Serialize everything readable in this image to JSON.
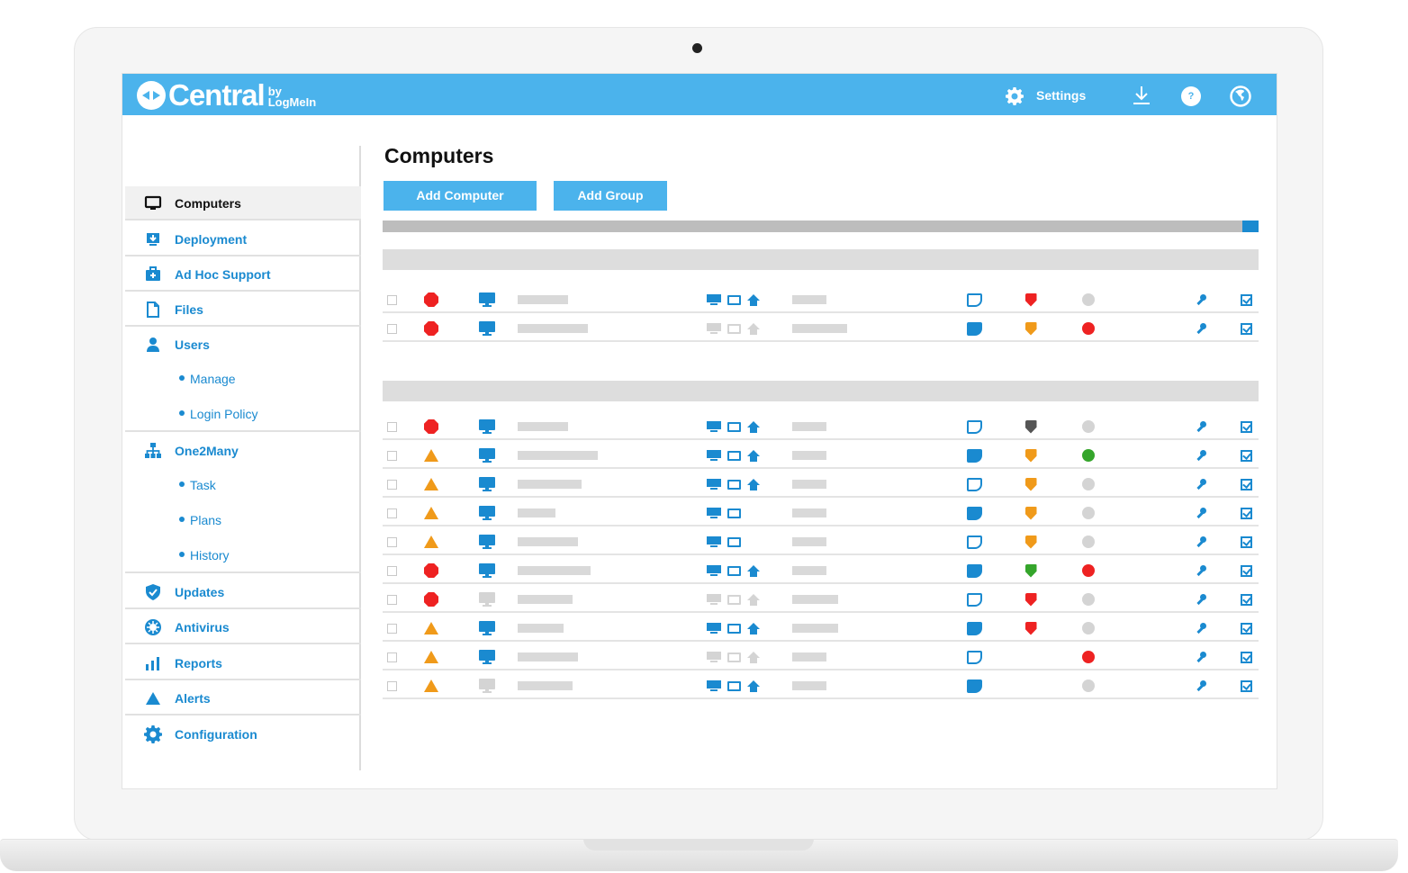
{
  "header": {
    "logo_text": "Central",
    "logo_by": "by",
    "logo_brand": "LogMeIn",
    "settings_label": "Settings",
    "help_glyph": "?",
    "icons": [
      "gear-icon",
      "download-icon",
      "help-icon",
      "globe-icon"
    ],
    "background_color": "#4bb3ec"
  },
  "sidebar": {
    "items": [
      {
        "label": "Computers",
        "icon": "monitor-icon",
        "active": true
      },
      {
        "label": "Deployment",
        "icon": "deploy-icon"
      },
      {
        "label": "Ad Hoc Support",
        "icon": "medkit-icon"
      },
      {
        "label": "Files",
        "icon": "file-icon"
      },
      {
        "label": "Users",
        "icon": "user-icon",
        "children": [
          "Manage",
          "Login Policy"
        ]
      },
      {
        "label": "One2Many",
        "icon": "hierarchy-icon",
        "children": [
          "Task",
          "Plans",
          "History"
        ]
      },
      {
        "label": "Updates",
        "icon": "shield-check-icon"
      },
      {
        "label": "Antivirus",
        "icon": "virus-icon"
      },
      {
        "label": "Reports",
        "icon": "bar-chart-icon"
      },
      {
        "label": "Alerts",
        "icon": "alert-triangle-icon"
      },
      {
        "label": "Configuration",
        "icon": "gear-icon"
      }
    ],
    "sub": {
      "manage": "Manage",
      "login_policy": "Login Policy",
      "task": "Task",
      "plans": "Plans",
      "history": "History"
    }
  },
  "main": {
    "title": "Computers",
    "add_computer_label": "Add Computer",
    "add_group_label": "Add Group",
    "accent_color": "#1a8ad0",
    "status_colors": {
      "red": "#ee2222",
      "orange": "#f09a1a",
      "green": "#35a52b",
      "grey": "#d4d4d4",
      "dark": "#555555"
    },
    "groups": [
      {
        "rows": [
          {
            "alert": "critical",
            "online": true,
            "tools_active": true,
            "tools": 3,
            "note": "outline",
            "shield": "red",
            "status": "grey"
          },
          {
            "alert": "critical",
            "online": true,
            "tools_active": false,
            "tools": 3,
            "note": "filled",
            "shield": "orange",
            "status": "red"
          }
        ]
      },
      {
        "rows": [
          {
            "alert": "critical",
            "online": true,
            "tools_active": true,
            "tools": 3,
            "note": "outline",
            "shield": "dark",
            "status": "grey"
          },
          {
            "alert": "warning",
            "online": true,
            "tools_active": true,
            "tools": 3,
            "note": "filled",
            "shield": "orange",
            "status": "green"
          },
          {
            "alert": "warning",
            "online": true,
            "tools_active": true,
            "tools": 3,
            "note": "outline",
            "shield": "orange",
            "status": "grey"
          },
          {
            "alert": "warning",
            "online": true,
            "tools_active": true,
            "tools": 2,
            "note": "filled",
            "shield": "orange",
            "status": "grey"
          },
          {
            "alert": "warning",
            "online": true,
            "tools_active": true,
            "tools": 2,
            "note": "outline",
            "shield": "orange",
            "status": "grey"
          },
          {
            "alert": "critical",
            "online": true,
            "tools_active": true,
            "tools": 3,
            "note": "filled",
            "shield": "green",
            "status": "red"
          },
          {
            "alert": "critical",
            "online": false,
            "tools_active": false,
            "tools": 3,
            "note": "outline",
            "shield": "red",
            "status": "grey"
          },
          {
            "alert": "warning",
            "online": true,
            "tools_active": true,
            "tools": 3,
            "note": "filled",
            "shield": "red",
            "status": "grey"
          },
          {
            "alert": "warning",
            "online": true,
            "tools_active": false,
            "tools": 3,
            "note": "outline",
            "shield": "none",
            "status": "red"
          },
          {
            "alert": "warning",
            "online": false,
            "tools_active": true,
            "tools": 3,
            "note": "filled",
            "shield": "none",
            "status": "grey"
          }
        ]
      }
    ]
  }
}
